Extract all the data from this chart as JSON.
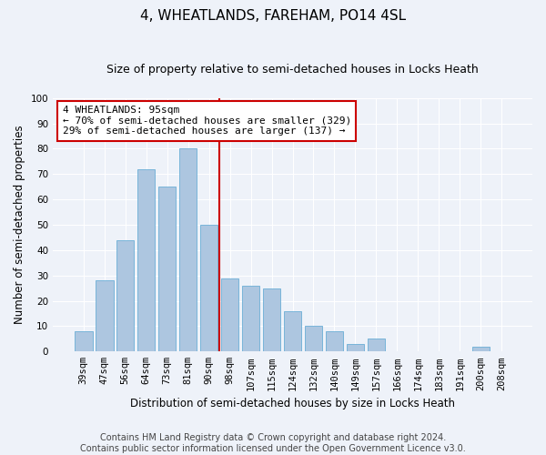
{
  "title": "4, WHEATLANDS, FAREHAM, PO14 4SL",
  "subtitle": "Size of property relative to semi-detached houses in Locks Heath",
  "xlabel": "Distribution of semi-detached houses by size in Locks Heath",
  "ylabel": "Number of semi-detached properties",
  "footnote1": "Contains HM Land Registry data © Crown copyright and database right 2024.",
  "footnote2": "Contains public sector information licensed under the Open Government Licence v3.0.",
  "categories": [
    "39sqm",
    "47sqm",
    "56sqm",
    "64sqm",
    "73sqm",
    "81sqm",
    "90sqm",
    "98sqm",
    "107sqm",
    "115sqm",
    "124sqm",
    "132sqm",
    "140sqm",
    "149sqm",
    "157sqm",
    "166sqm",
    "174sqm",
    "183sqm",
    "191sqm",
    "200sqm",
    "208sqm"
  ],
  "values": [
    8,
    28,
    44,
    72,
    65,
    80,
    50,
    29,
    26,
    25,
    16,
    10,
    8,
    3,
    5,
    0,
    0,
    0,
    0,
    2,
    0
  ],
  "bar_color": "#adc6e0",
  "bar_edge_color": "#6aaed6",
  "vline_x_index": 7,
  "vline_color": "#cc0000",
  "annotation_line1": "4 WHEATLANDS: 95sqm",
  "annotation_line2": "← 70% of semi-detached houses are smaller (329)",
  "annotation_line3": "29% of semi-detached houses are larger (137) →",
  "annotation_box_color": "#ffffff",
  "annotation_box_edgecolor": "#cc0000",
  "ylim": [
    0,
    100
  ],
  "background_color": "#eef2f9",
  "grid_color": "#ffffff",
  "title_fontsize": 11,
  "subtitle_fontsize": 9,
  "axis_label_fontsize": 8.5,
  "tick_fontsize": 7.5,
  "annotation_fontsize": 8,
  "footnote_fontsize": 7
}
